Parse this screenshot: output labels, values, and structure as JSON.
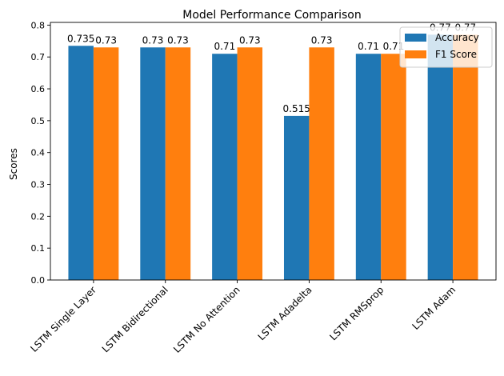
{
  "chart_data": {
    "type": "bar",
    "title": "Model Performance Comparison",
    "xlabel": "",
    "ylabel": "Scores",
    "ylim": [
      0,
      0.8085
    ],
    "yticks": [
      "0.0",
      "0.1",
      "0.2",
      "0.3",
      "0.4",
      "0.5",
      "0.6",
      "0.7",
      "0.8"
    ],
    "grid": false,
    "legend_position": "top-right",
    "categories": [
      "LSTM Single Layer",
      "LSTM Bidirectional",
      "LSTM No Attention",
      "LSTM Adadelta",
      "LSTM RMSprop",
      "LSTM Adam"
    ],
    "series": [
      {
        "name": "Accuracy",
        "color": "#1f77b4",
        "values": [
          0.735,
          0.73,
          0.71,
          0.515,
          0.71,
          0.77
        ],
        "labels": [
          "0.735",
          "0.73",
          "0.71",
          "0.515",
          "0.71",
          "0.77"
        ]
      },
      {
        "name": "F1 Score",
        "color": "#ff7f0e",
        "values": [
          0.73,
          0.73,
          0.73,
          0.73,
          0.71,
          0.77
        ],
        "labels": [
          "0.73",
          "0.73",
          "0.73",
          "0.73",
          "0.71",
          "0.77"
        ]
      }
    ]
  }
}
